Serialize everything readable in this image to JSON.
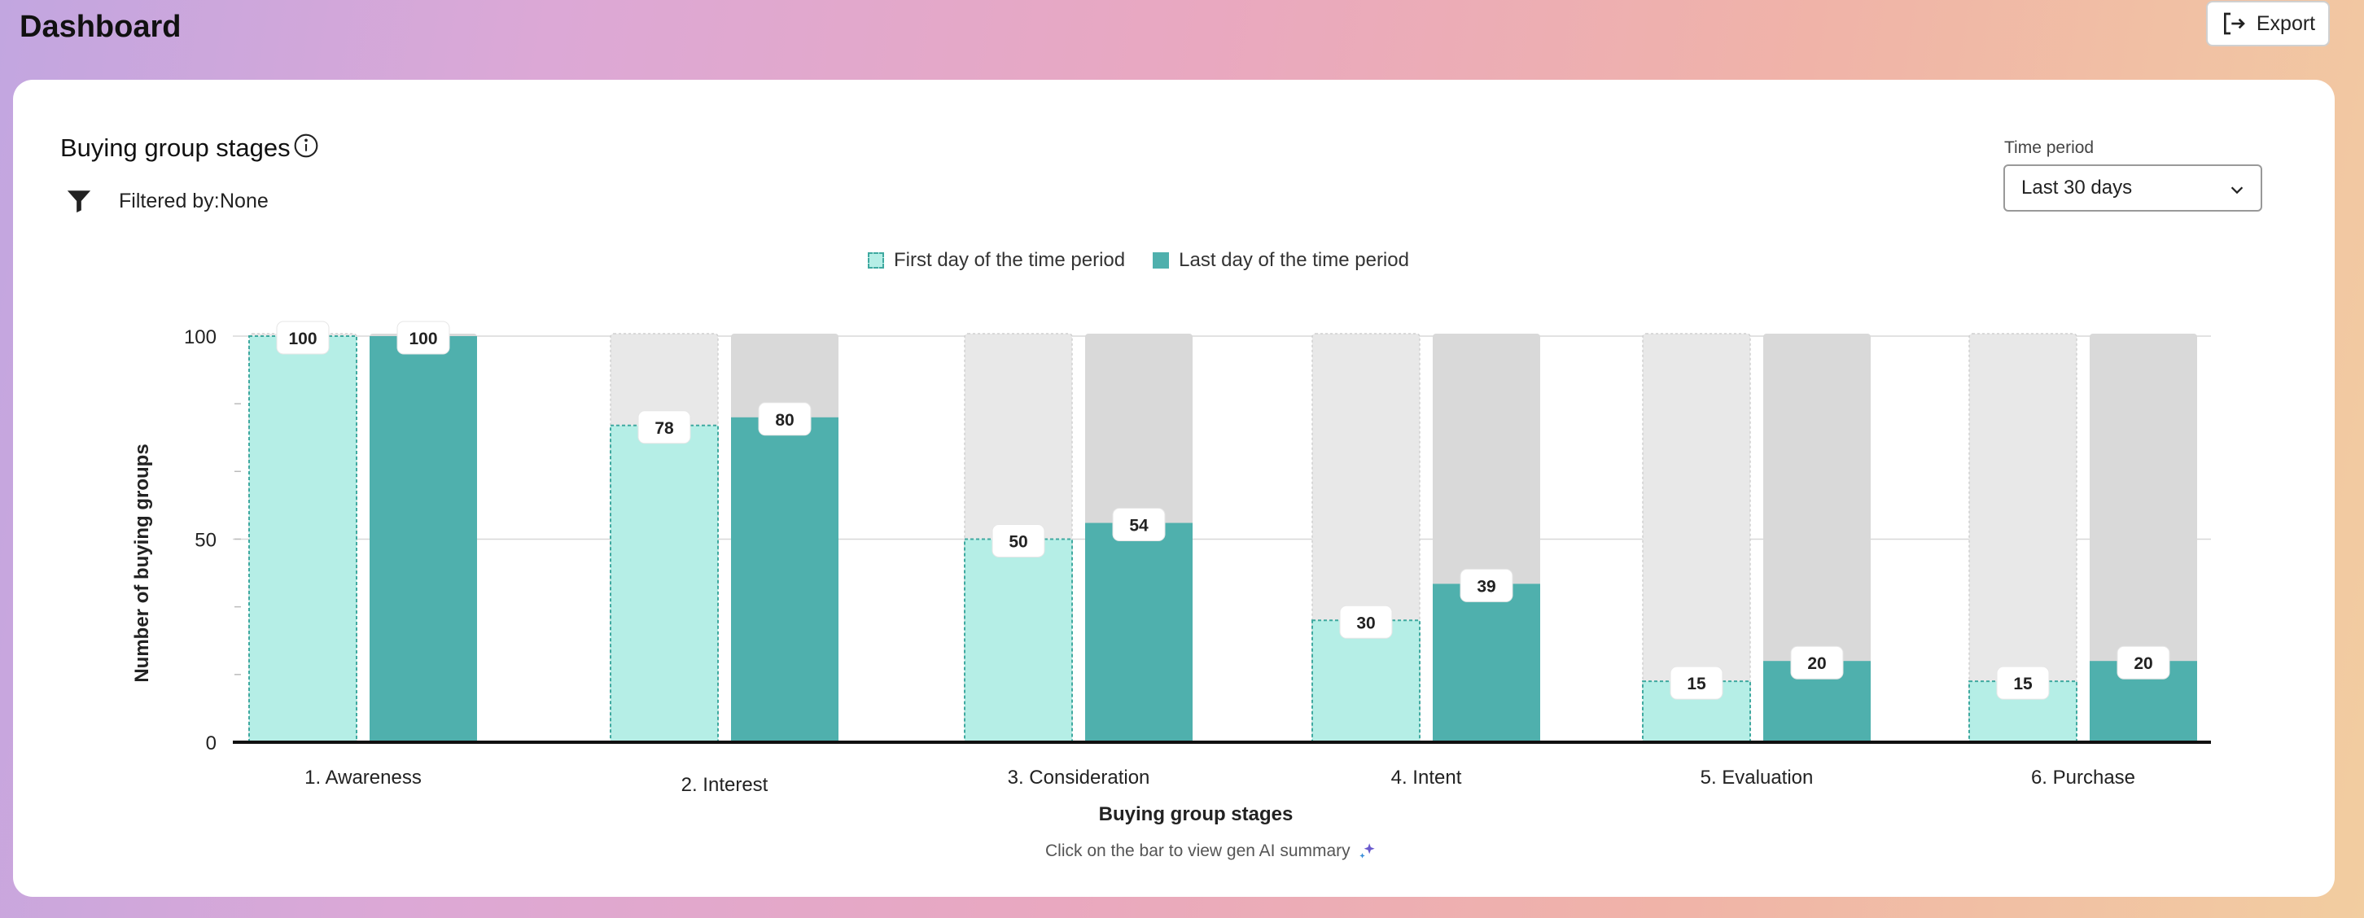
{
  "app": {
    "title": "Dashboard"
  },
  "toolbar": {
    "export_label": "Export",
    "export_icon": "export-icon"
  },
  "widget": {
    "title": "Buying group stages",
    "info_icon": "info-icon",
    "filter": {
      "icon": "filter-icon",
      "label": "Filtered by:",
      "value": "None"
    },
    "time_period": {
      "label": "Time period",
      "value": "Last 30 days"
    },
    "hint": "Click on the bar to view gen AI summary",
    "hint_icon": "sparkle-icon"
  },
  "colors": {
    "first_fill": "#b5eee6",
    "first_border": "#3fa9a0",
    "last_fill": "#4fb0ad",
    "track_first": "#e8e8e8",
    "track_last": "#d9d9d9"
  },
  "chart_data": {
    "type": "bar",
    "categories": [
      "1. Awareness",
      "2. Interest",
      "3. Consideration",
      "4. Intent",
      "5. Evaluation",
      "6. Purchase"
    ],
    "series": [
      {
        "name": "First day of the time period",
        "values": [
          100,
          78,
          50,
          30,
          15,
          15
        ]
      },
      {
        "name": "Last day of the time period",
        "values": [
          100,
          80,
          54,
          39,
          20,
          20
        ]
      }
    ],
    "xlabel": "Buying group stages",
    "ylabel": "Number of buying groups",
    "ylim": [
      0,
      100
    ],
    "yticks": [
      0,
      50,
      100
    ],
    "legend": "top-center",
    "grid": true
  }
}
